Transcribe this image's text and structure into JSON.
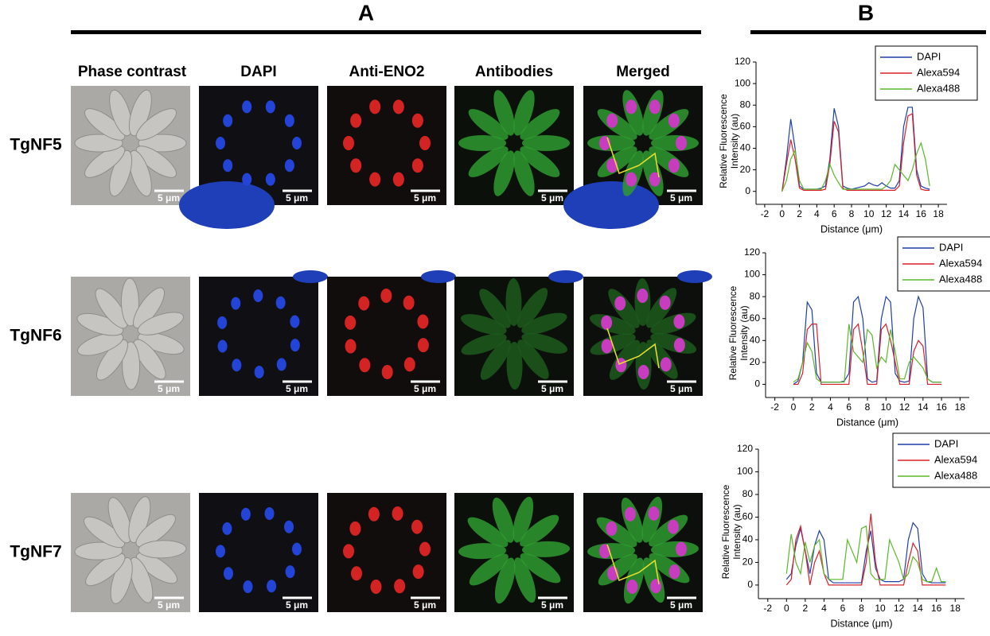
{
  "figure": {
    "panels": [
      "A",
      "B"
    ],
    "columns": [
      "Phase contrast",
      "DAPI",
      "Anti-ENO2",
      "Antibodies",
      "Merged"
    ],
    "rows": [
      "TgNF5",
      "TgNF6",
      "TgNF7"
    ],
    "scale_bar": "5 μm"
  },
  "chart_data": [
    {
      "type": "line",
      "xlabel": "Distance (μm)",
      "ylabel": [
        "Relative Fluorescence",
        "Intensity (au)"
      ],
      "legend": "upper right",
      "xlim": [
        -3,
        19
      ],
      "ylim": [
        -12,
        120
      ],
      "xticks": [
        -2,
        0,
        2,
        4,
        6,
        8,
        10,
        12,
        14,
        16,
        18
      ],
      "yticks": [
        0,
        20,
        40,
        60,
        80,
        100,
        120
      ],
      "x": [
        0,
        0.5,
        1,
        1.5,
        2,
        2.5,
        3,
        3.5,
        4,
        4.5,
        5,
        5.5,
        6,
        6.5,
        7,
        7.5,
        8,
        8.5,
        9,
        9.5,
        10,
        10.5,
        11,
        11.5,
        12,
        12.5,
        13,
        13.5,
        14,
        14.5,
        15,
        15.5,
        16,
        16.5,
        17
      ],
      "series": [
        {
          "name": "DAPI",
          "color": "#1f3fa8",
          "values": [
            0,
            30,
            67,
            40,
            5,
            2,
            2,
            2,
            2,
            3,
            5,
            30,
            77,
            60,
            5,
            3,
            2,
            3,
            4,
            5,
            8,
            6,
            5,
            8,
            5,
            3,
            3,
            10,
            60,
            78,
            78,
            20,
            5,
            3,
            2
          ]
        },
        {
          "name": "Alexa594",
          "color": "#d8202a",
          "values": [
            0,
            25,
            48,
            30,
            3,
            1,
            1,
            1,
            1,
            1,
            2,
            25,
            65,
            55,
            3,
            1,
            1,
            1,
            1,
            1,
            1,
            1,
            1,
            1,
            1,
            1,
            1,
            5,
            45,
            70,
            72,
            15,
            2,
            1,
            1
          ]
        },
        {
          "name": "Alexa488",
          "color": "#5bb82a",
          "values": [
            0,
            10,
            30,
            38,
            10,
            2,
            2,
            2,
            2,
            2,
            10,
            25,
            15,
            8,
            2,
            2,
            2,
            2,
            2,
            2,
            2,
            2,
            2,
            2,
            5,
            10,
            25,
            20,
            15,
            10,
            20,
            35,
            45,
            30,
            5
          ]
        }
      ]
    },
    {
      "type": "line",
      "xlabel": "Distance (μm)",
      "ylabel": [
        "Relative Fluorescence",
        "Intensity (au)"
      ],
      "legend": "upper right",
      "xlim": [
        -3,
        19
      ],
      "ylim": [
        -12,
        120
      ],
      "xticks": [
        -2,
        0,
        2,
        4,
        6,
        8,
        10,
        12,
        14,
        16,
        18
      ],
      "yticks": [
        0,
        20,
        40,
        60,
        80,
        100,
        120
      ],
      "x": [
        0,
        0.5,
        1,
        1.5,
        2,
        2.5,
        3,
        3.5,
        4,
        4.5,
        5,
        5.5,
        6,
        6.5,
        7,
        7.5,
        8,
        8.5,
        9,
        9.5,
        10,
        10.5,
        11,
        11.5,
        12,
        12.5,
        13,
        13.5,
        14,
        14.5,
        15,
        15.5,
        16
      ],
      "series": [
        {
          "name": "DAPI",
          "color": "#1f3fa8",
          "values": [
            0,
            3,
            20,
            75,
            68,
            10,
            2,
            2,
            2,
            2,
            2,
            3,
            10,
            75,
            80,
            60,
            5,
            2,
            3,
            60,
            80,
            75,
            10,
            3,
            2,
            3,
            60,
            80,
            70,
            5,
            2,
            2,
            2
          ]
        },
        {
          "name": "Alexa594",
          "color": "#d8202a",
          "values": [
            0,
            0,
            10,
            50,
            55,
            55,
            0,
            0,
            0,
            0,
            0,
            0,
            0,
            50,
            55,
            30,
            0,
            0,
            0,
            50,
            55,
            40,
            20,
            0,
            0,
            0,
            30,
            40,
            35,
            0,
            0,
            0,
            0
          ]
        },
        {
          "name": "Alexa488",
          "color": "#5bb82a",
          "values": [
            2,
            5,
            20,
            38,
            30,
            5,
            2,
            2,
            2,
            2,
            2,
            2,
            55,
            30,
            25,
            20,
            50,
            45,
            15,
            25,
            20,
            50,
            30,
            5,
            5,
            20,
            25,
            20,
            15,
            5,
            2,
            2,
            2
          ]
        }
      ]
    },
    {
      "type": "line",
      "xlabel": "Distance (μm)",
      "ylabel": [
        "Relative Fluorescence",
        "Intensity (au)"
      ],
      "legend": "upper right",
      "xlim": [
        -3,
        19
      ],
      "ylim": [
        -12,
        120
      ],
      "xticks": [
        -2,
        0,
        2,
        4,
        6,
        8,
        10,
        12,
        14,
        16,
        18
      ],
      "yticks": [
        0,
        20,
        40,
        60,
        80,
        100,
        120
      ],
      "x": [
        0,
        0.5,
        1,
        1.5,
        2,
        2.5,
        3,
        3.5,
        4,
        4.5,
        5,
        5.5,
        6,
        6.5,
        7,
        7.5,
        8,
        8.5,
        9,
        9.5,
        10,
        10.5,
        11,
        11.5,
        12,
        12.5,
        13,
        13.5,
        14,
        14.5,
        15,
        15.5,
        16,
        16.5,
        17
      ],
      "series": [
        {
          "name": "DAPI",
          "color": "#1f3fa8",
          "values": [
            5,
            10,
            35,
            50,
            30,
            10,
            35,
            48,
            40,
            5,
            2,
            2,
            2,
            2,
            2,
            2,
            2,
            30,
            48,
            15,
            5,
            3,
            3,
            3,
            3,
            5,
            40,
            55,
            50,
            10,
            3,
            2,
            2,
            2,
            2
          ]
        },
        {
          "name": "Alexa594",
          "color": "#d8202a",
          "values": [
            0,
            5,
            40,
            52,
            30,
            0,
            20,
            30,
            10,
            0,
            0,
            0,
            0,
            0,
            0,
            0,
            0,
            20,
            63,
            20,
            0,
            0,
            0,
            0,
            0,
            0,
            20,
            37,
            30,
            0,
            0,
            0,
            0,
            0,
            0
          ]
        },
        {
          "name": "Alexa488",
          "color": "#5bb82a",
          "values": [
            10,
            45,
            20,
            10,
            38,
            20,
            35,
            40,
            10,
            5,
            5,
            5,
            5,
            40,
            30,
            20,
            50,
            52,
            10,
            5,
            5,
            5,
            40,
            30,
            20,
            5,
            10,
            25,
            20,
            5,
            3,
            3,
            15,
            3,
            3
          ]
        }
      ]
    }
  ]
}
